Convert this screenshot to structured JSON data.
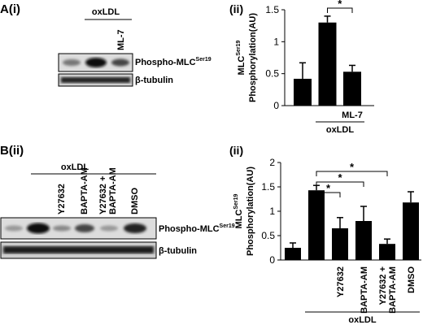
{
  "panels": [
    "A(i)",
    "(ii)",
    "B(ii)",
    "(ii)"
  ],
  "blots": [
    {
      "title": "oxLDL",
      "lanes": [
        "ML-7"
      ],
      "rows": [
        {
          "text": "Phospho-MLC",
          "sup": "Ser19"
        },
        {
          "text": "β-tubulin"
        }
      ]
    },
    {
      "title": "oxLDL",
      "lanes": [
        "Y27632",
        "BAPTA-AM",
        [
          "Y27632 +",
          "BAPTA-AM"
        ],
        "DMSO"
      ],
      "rows": [
        {
          "text": "Phospho-MLC",
          "sup": "Ser19"
        },
        {
          "text": "β-tubulin"
        }
      ]
    }
  ],
  "chart_data": [
    {
      "type": "bar",
      "ylabel": {
        "text": "MLC",
        "sup": "Ser19",
        "line2": "Phosphorylation(AU)"
      },
      "categories": [
        null,
        null,
        "ML-7"
      ],
      "group_label": "oxLDL",
      "series": [
        {
          "color": "#000000",
          "values": [
            0.42,
            1.3,
            0.53
          ],
          "errors": [
            0.25,
            0.1,
            0.1
          ]
        }
      ],
      "annotations": [
        "*"
      ],
      "ylim": [
        0,
        1.5
      ],
      "yticks": [
        0,
        0.5,
        1,
        1.5
      ]
    },
    {
      "type": "bar",
      "ylabel": {
        "text": "MLC",
        "sup": "Ser19",
        "line2": "Phosphorylation(AU)"
      },
      "categories": [
        null,
        null,
        "Y27632",
        "BAPTA-AM",
        [
          "Y27632 +",
          "BAPTA-AM"
        ],
        "DMSO"
      ],
      "group_label": "oxLDL",
      "series": [
        {
          "color": "#000000",
          "values": [
            0.25,
            1.43,
            0.65,
            0.8,
            0.33,
            1.18
          ],
          "errors": [
            0.1,
            0.1,
            0.22,
            0.3,
            0.1,
            0.22
          ]
        }
      ],
      "annotations": [
        "*",
        "*",
        "*"
      ],
      "ylim": [
        0,
        2
      ],
      "yticks": [
        0,
        0.5,
        1,
        1.5,
        2
      ]
    }
  ]
}
